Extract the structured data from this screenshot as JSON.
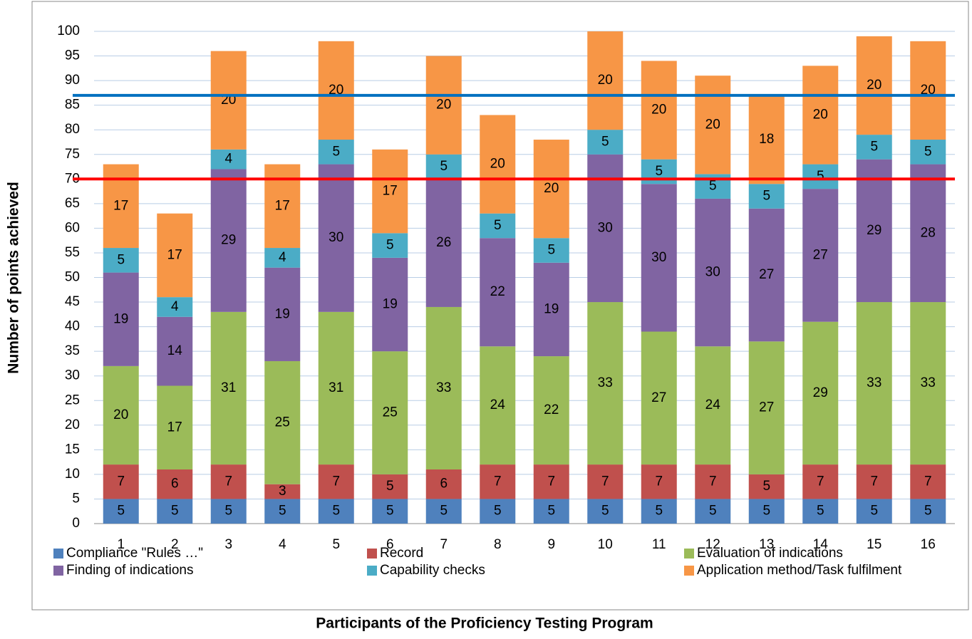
{
  "chart_data": {
    "type": "stacked_bar",
    "x_label": "Participants of the Proficiency Testing Program",
    "y_label": "Number of points achieved",
    "categories": [
      "1",
      "2",
      "3",
      "4",
      "5",
      "6",
      "7",
      "8",
      "9",
      "10",
      "11",
      "12",
      "13",
      "14",
      "15",
      "16"
    ],
    "series": [
      {
        "name": "Compliance \"Rules …\"",
        "color": "#4f81bd",
        "values": [
          5,
          5,
          5,
          5,
          5,
          5,
          5,
          5,
          5,
          5,
          5,
          5,
          5,
          5,
          5,
          5
        ]
      },
      {
        "name": "Record",
        "color": "#c0504d",
        "values": [
          7,
          6,
          7,
          3,
          7,
          5,
          6,
          7,
          7,
          7,
          7,
          7,
          5,
          7,
          7,
          7
        ]
      },
      {
        "name": "Evaluation of indications",
        "color": "#9bbb59",
        "values": [
          20,
          17,
          31,
          25,
          31,
          25,
          33,
          24,
          22,
          33,
          27,
          24,
          27,
          29,
          33,
          33
        ]
      },
      {
        "name": "Finding of indications",
        "color": "#8064a2",
        "values": [
          19,
          14,
          29,
          19,
          30,
          19,
          26,
          22,
          19,
          30,
          30,
          30,
          27,
          27,
          29,
          28
        ]
      },
      {
        "name": "Capability checks",
        "color": "#4bacc6",
        "values": [
          5,
          4,
          4,
          4,
          5,
          5,
          5,
          5,
          5,
          5,
          5,
          5,
          5,
          5,
          5,
          5
        ]
      },
      {
        "name": "Application method/Task fulfilment",
        "color": "#f79646",
        "values": [
          17,
          17,
          20,
          17,
          20,
          17,
          20,
          20,
          20,
          20,
          20,
          20,
          18,
          20,
          20,
          20
        ]
      }
    ],
    "reference_lines": [
      {
        "value": 87,
        "color": "#0070c0"
      },
      {
        "value": 70,
        "color": "#ff0000"
      }
    ],
    "ylim": [
      0,
      100
    ],
    "yticks": [
      0,
      5,
      10,
      15,
      20,
      25,
      30,
      35,
      40,
      45,
      50,
      55,
      60,
      65,
      70,
      75,
      80,
      85,
      90,
      95,
      100
    ],
    "grid": true,
    "legend": "bottom"
  }
}
